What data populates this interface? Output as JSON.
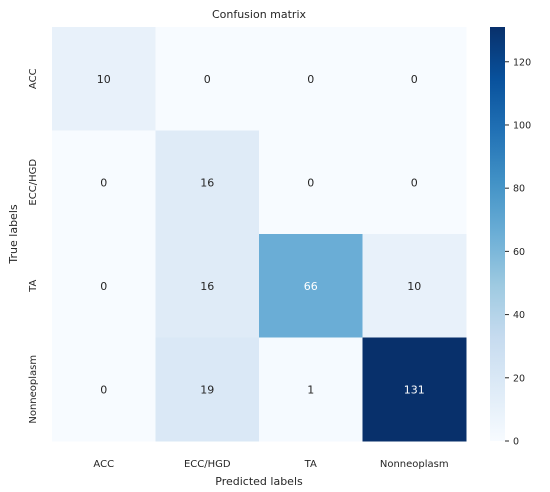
{
  "chart_data": {
    "type": "heatmap",
    "title": "Confusion matrix",
    "xlabel": "Predicted labels",
    "ylabel": "True labels",
    "x_categories": [
      "ACC",
      "ECC/HGD",
      "TA",
      "Nonneoplasm"
    ],
    "y_categories": [
      "ACC",
      "ECC/HGD",
      "TA",
      "Nonneoplasm"
    ],
    "values": [
      [
        10,
        0,
        0,
        0
      ],
      [
        0,
        16,
        0,
        0
      ],
      [
        0,
        16,
        66,
        10
      ],
      [
        0,
        19,
        1,
        131
      ]
    ],
    "colormap": "Blues",
    "colorbar": {
      "range": [
        0,
        131
      ],
      "ticks": [
        0,
        20,
        40,
        60,
        80,
        100,
        120
      ]
    },
    "text_color_dark": "#262626",
    "text_color_light": "#ffffff"
  }
}
